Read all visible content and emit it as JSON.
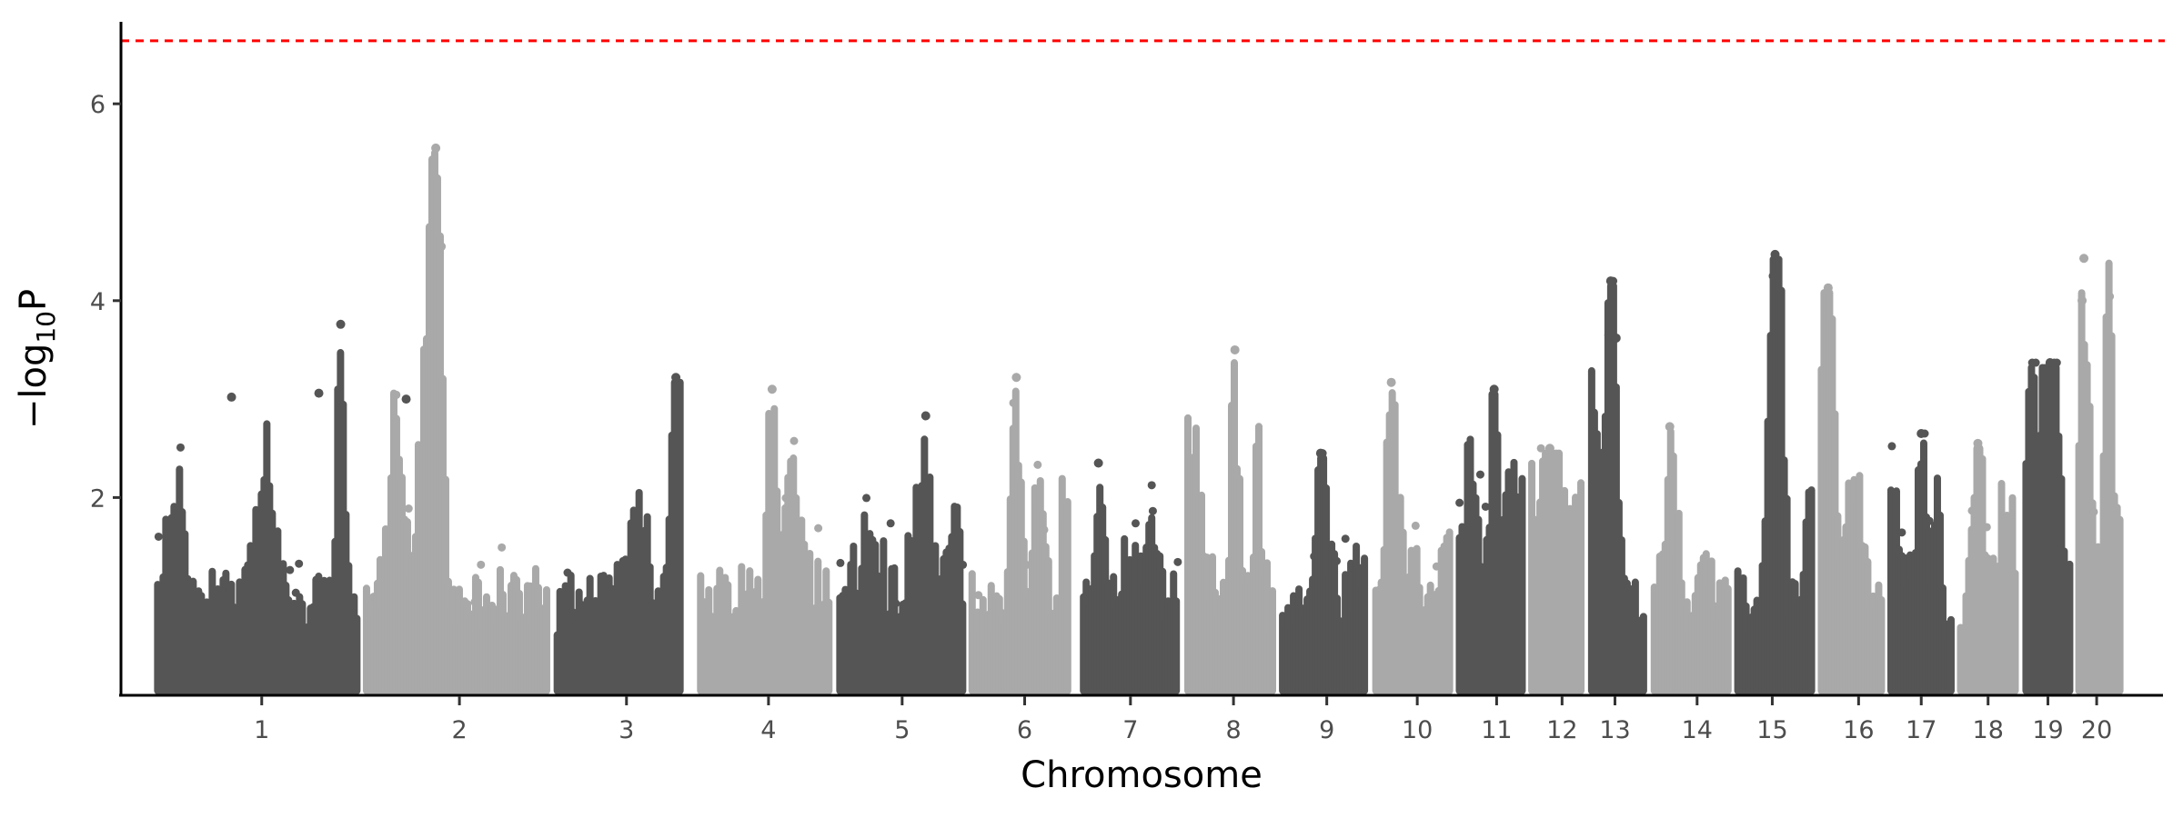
{
  "chart_data": {
    "type": "scatter",
    "subtype": "manhattan",
    "title": "",
    "xlabel": "Chromosome",
    "ylabel": "-log10P",
    "ylabel_parts": {
      "prefix": "−log",
      "sub": "10",
      "suffix": "P"
    },
    "categories": [
      "1",
      "2",
      "3",
      "4",
      "5",
      "6",
      "7",
      "8",
      "9",
      "10",
      "11",
      "12",
      "13",
      "14",
      "15",
      "16",
      "17",
      "18",
      "19",
      "20"
    ],
    "peak_values": [
      3.76,
      5.55,
      3.22,
      3.1,
      2.83,
      3.22,
      2.35,
      3.5,
      2.45,
      3.17,
      3.1,
      2.5,
      4.2,
      2.72,
      4.47,
      4.13,
      2.65,
      2.55,
      3.37,
      4.43
    ],
    "secondary_hits": {
      "1": [
        3.06,
        3.0,
        3.02
      ],
      "2": [
        5.27,
        4.55
      ],
      "13": [
        3.65,
        3.62
      ],
      "15": [
        4.25
      ],
      "20": [
        4.0
      ]
    },
    "ylim": [
      0,
      6.8
    ],
    "yticks": [
      "2",
      "4",
      "6"
    ],
    "threshold": 6.64,
    "grid": false,
    "legend": "none",
    "colors": {
      "odd_chromosome": "#555555",
      "even_chromosome": "#a9a9a9",
      "threshold": "#ff0000",
      "axis": "#000000"
    }
  }
}
